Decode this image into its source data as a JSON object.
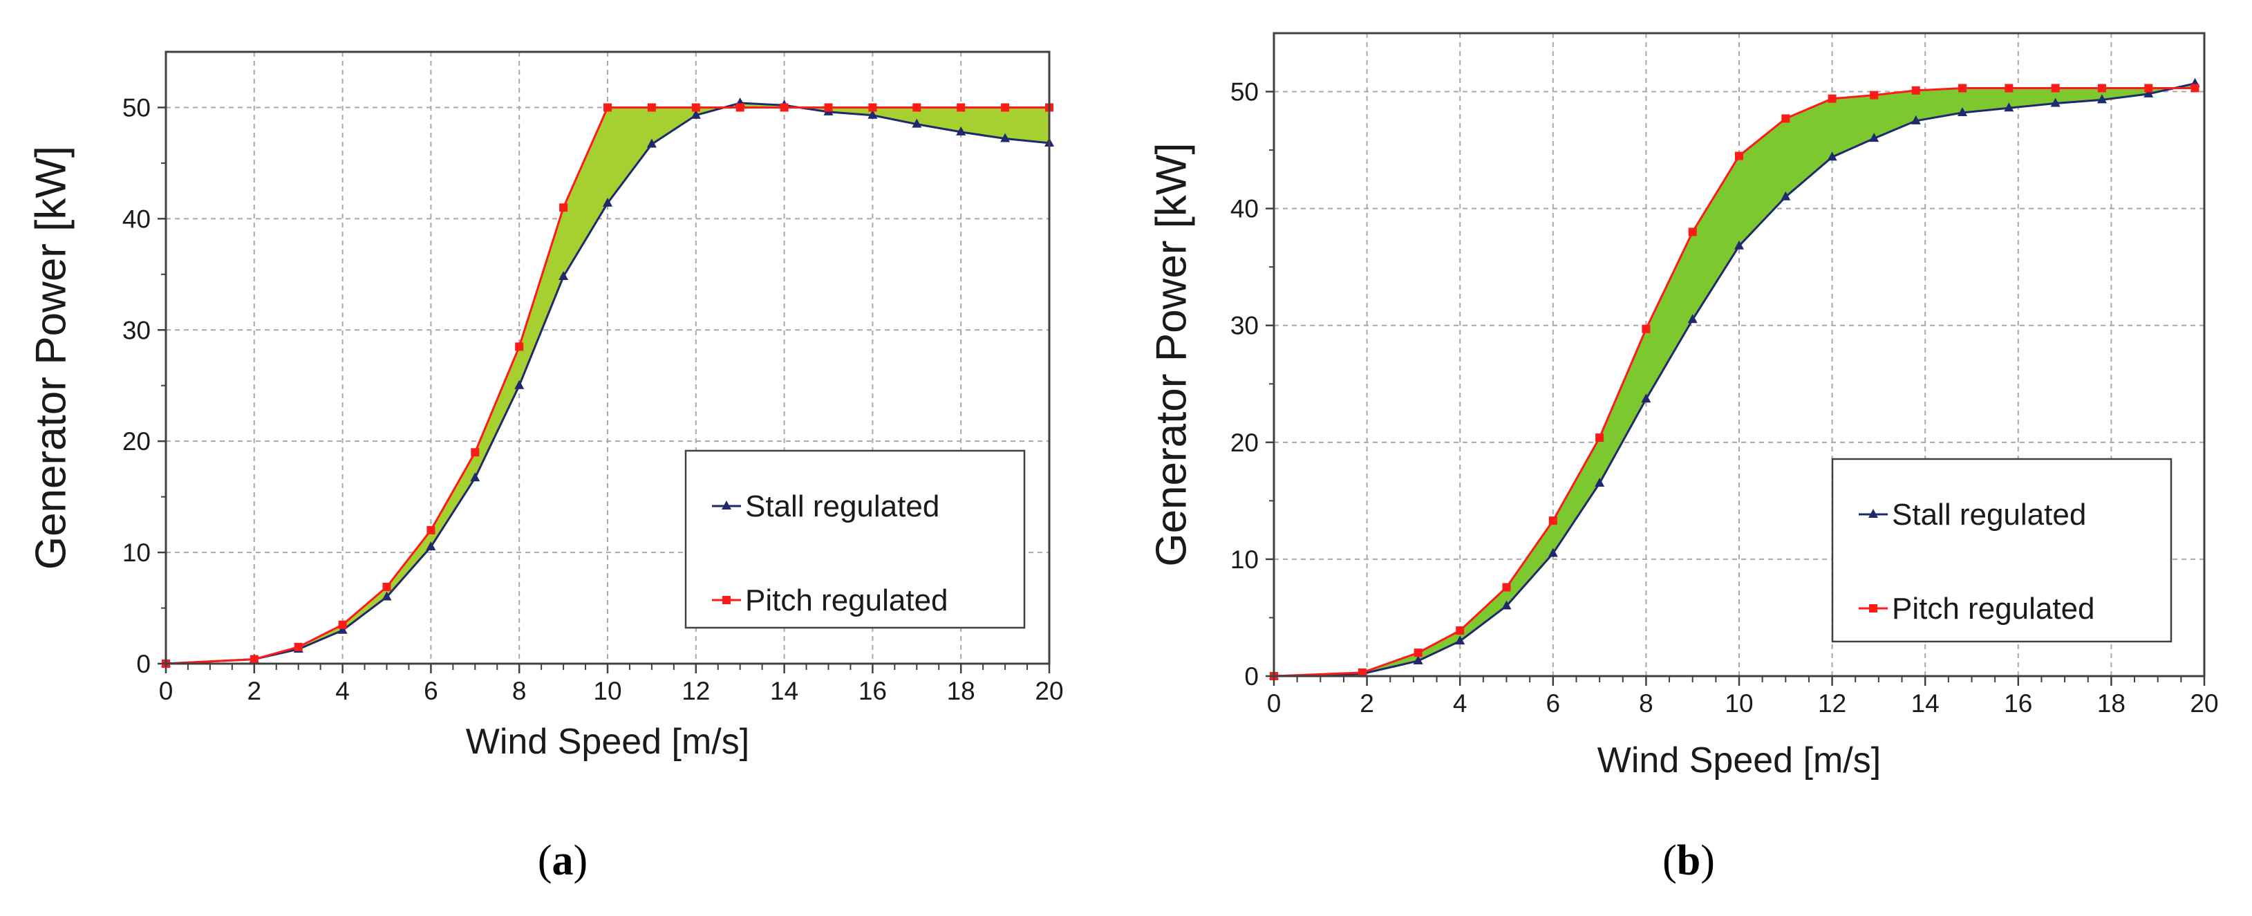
{
  "chart_data": [
    {
      "type": "line",
      "panel_caption_open": "(",
      "panel_caption_letter": "a",
      "panel_caption_close": ")",
      "xlabel": "Wind Speed [m/s]",
      "ylabel": "Generator Power [kW]",
      "xlim": [
        0,
        20
      ],
      "ylim": [
        0,
        55
      ],
      "xticks": [
        0,
        2,
        4,
        6,
        8,
        10,
        12,
        14,
        16,
        18,
        20
      ],
      "yticks": [
        0,
        10,
        20,
        30,
        40,
        50
      ],
      "grid": true,
      "legend_position": "lower-right",
      "fill_between": {
        "color": "#a6d02f"
      },
      "series": [
        {
          "name": "Stall regulated",
          "color": "#1f2a6e",
          "marker": "triangle",
          "x": [
            0,
            2,
            3,
            4,
            5,
            6,
            7,
            8,
            9,
            10,
            11,
            12,
            13,
            14,
            15,
            16,
            17,
            18,
            19,
            20
          ],
          "y": [
            0,
            0.4,
            1.3,
            3.0,
            6.0,
            10.5,
            16.7,
            25.0,
            34.8,
            41.4,
            46.7,
            49.3,
            50.4,
            50.2,
            49.6,
            49.3,
            48.5,
            47.8,
            47.2,
            46.8
          ]
        },
        {
          "name": "Pitch regulated",
          "color": "#ff1a1a",
          "marker": "square",
          "x": [
            0,
            2,
            3,
            4,
            5,
            6,
            7,
            8,
            9,
            10,
            11,
            12,
            13,
            14,
            15,
            16,
            17,
            18,
            19,
            20
          ],
          "y": [
            0,
            0.4,
            1.5,
            3.5,
            6.9,
            12.0,
            19.0,
            28.5,
            41.0,
            50.0,
            50.0,
            50.0,
            50.0,
            50.0,
            50.0,
            50.0,
            50.0,
            50.0,
            50.0,
            50.0
          ]
        }
      ]
    },
    {
      "type": "line",
      "panel_caption_open": "(",
      "panel_caption_letter": "b",
      "panel_caption_close": ")",
      "xlabel": "Wind Speed [m/s]",
      "ylabel": "Generator Power [kW]",
      "xlim": [
        0,
        20
      ],
      "ylim": [
        0,
        55
      ],
      "xticks": [
        0,
        2,
        4,
        6,
        8,
        10,
        12,
        14,
        16,
        18,
        20
      ],
      "yticks": [
        0,
        10,
        20,
        30,
        40,
        50
      ],
      "grid": true,
      "legend_position": "lower-right",
      "fill_between": {
        "color": "#7dc82e"
      },
      "series": [
        {
          "name": "Stall regulated",
          "color": "#1f2a6e",
          "marker": "triangle",
          "x": [
            0,
            1.9,
            3.1,
            4.0,
            5.0,
            6.0,
            7.0,
            8.0,
            9.0,
            10.0,
            11.0,
            12.0,
            12.9,
            13.8,
            14.8,
            15.8,
            16.8,
            17.8,
            18.8,
            19.8
          ],
          "y": [
            0,
            0.2,
            1.3,
            3.0,
            6.0,
            10.5,
            16.5,
            23.7,
            30.5,
            36.8,
            41.0,
            44.4,
            46.0,
            47.5,
            48.2,
            48.6,
            49.0,
            49.3,
            49.8,
            50.7
          ]
        },
        {
          "name": "Pitch regulated",
          "color": "#ff1a1a",
          "marker": "square",
          "x": [
            0,
            1.9,
            3.1,
            4.0,
            5.0,
            6.0,
            7.0,
            8.0,
            9.0,
            10.0,
            11.0,
            12.0,
            12.9,
            13.8,
            14.8,
            15.8,
            16.8,
            17.8,
            18.8,
            19.8
          ],
          "y": [
            0,
            0.3,
            2.0,
            3.9,
            7.6,
            13.3,
            20.4,
            29.7,
            38.0,
            44.5,
            47.7,
            49.4,
            49.7,
            50.1,
            50.3,
            50.3,
            50.3,
            50.3,
            50.3,
            50.3
          ]
        }
      ]
    }
  ]
}
